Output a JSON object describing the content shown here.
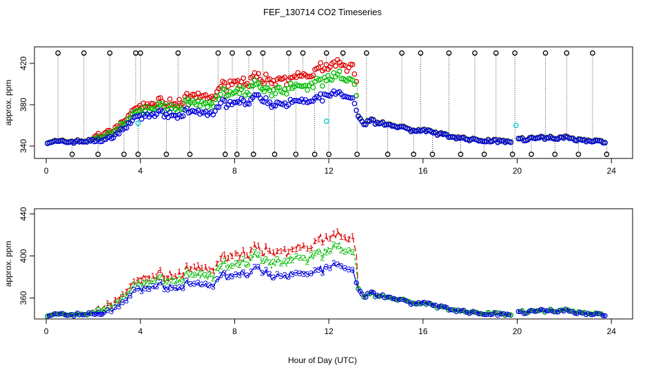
{
  "title": "FEF_130714  CO2 Timeseries",
  "xlabel": "Hour of Day (UTC)",
  "colors": {
    "s1": "#dd0000",
    "s2": "#00bb00",
    "s3": "#0000dd",
    "cyan": "#00cccc",
    "black": "#000000"
  },
  "chart_data": [
    {
      "type": "scatter",
      "ylabel": "approx. ppm",
      "xlim": [
        -0.5,
        24.9
      ],
      "ylim": [
        328,
        436
      ],
      "xticks": [
        0,
        4,
        8,
        12,
        16,
        20,
        24
      ],
      "xtick_labels": [
        "0",
        "4",
        "8",
        "12",
        "16",
        "20",
        "24"
      ],
      "yticks": [
        340,
        380,
        420
      ],
      "ytick_labels": [
        "340",
        "380",
        "420"
      ],
      "grid": false,
      "black_markers_x": [
        0.5,
        1.1,
        1.6,
        2.2,
        2.7,
        3.3,
        3.8,
        3.9,
        4.0,
        5.1,
        5.6,
        6.1,
        7.3,
        7.6,
        7.9,
        8.1,
        8.6,
        8.8,
        9.2,
        9.7,
        10.3,
        10.6,
        10.9,
        11.4,
        11.9,
        12.0,
        12.6,
        13.2,
        13.6,
        14.5,
        15.1,
        15.6,
        15.9,
        16.4,
        17.1,
        17.6,
        18.2,
        18.6,
        19.1,
        19.8,
        19.9,
        20.6,
        21.2,
        21.6,
        22.1,
        22.6,
        23.2,
        23.8
      ]
    },
    {
      "type": "line",
      "ylabel": "approx. ppm",
      "xlim": [
        -0.5,
        24.9
      ],
      "ylim": [
        340,
        445
      ],
      "xticks": [
        0,
        4,
        8,
        12,
        16,
        20,
        24
      ],
      "xtick_labels": [
        "0",
        "4",
        "8",
        "12",
        "16",
        "20",
        "24"
      ],
      "yticks": [
        360,
        400,
        440
      ],
      "ytick_labels": [
        "360",
        "400",
        "440"
      ],
      "grid": false,
      "series_symbols": [
        "1",
        "2",
        "3"
      ]
    }
  ]
}
